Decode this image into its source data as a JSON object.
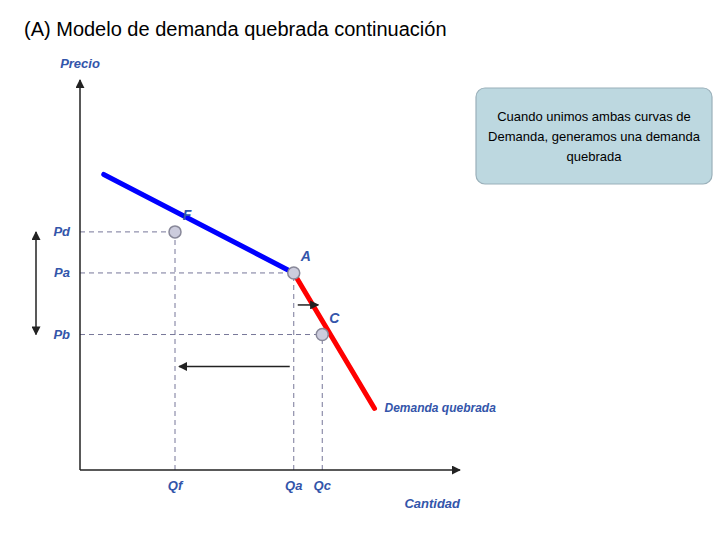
{
  "chart_data": {
    "type": "line",
    "title": "(A) Modelo de demanda quebrada continuación",
    "x_label": "Cantidad",
    "y_label": "Precio",
    "xlim": [
      0,
      8.0
    ],
    "ylim": [
      0,
      9.5
    ],
    "tick_labels": false,
    "grid": false,
    "series": [
      {
        "color": "blue",
        "x": [
          0.5,
          4.5
        ],
        "values": [
          7.2,
          4.8
        ]
      },
      {
        "color": "red",
        "x": [
          4.5,
          6.2
        ],
        "values": [
          4.8,
          1.5
        ]
      }
    ],
    "points": [
      {
        "label": "F",
        "x": 2.0,
        "y": 5.8,
        "x_label": "Qf",
        "y_label": "Pd"
      },
      {
        "label": "A",
        "x": 4.5,
        "y": 4.8,
        "x_label": "Qa",
        "y_label": "Pa"
      },
      {
        "label": "C",
        "x": 5.1,
        "y": 3.3,
        "x_label": "Qc",
        "y_label": "Pb"
      }
    ],
    "annotations": [
      "Demanda quebrada",
      "Cuando unimos ambas curvas de\nDemanda, generamos una demanda\nquebrada"
    ]
  }
}
